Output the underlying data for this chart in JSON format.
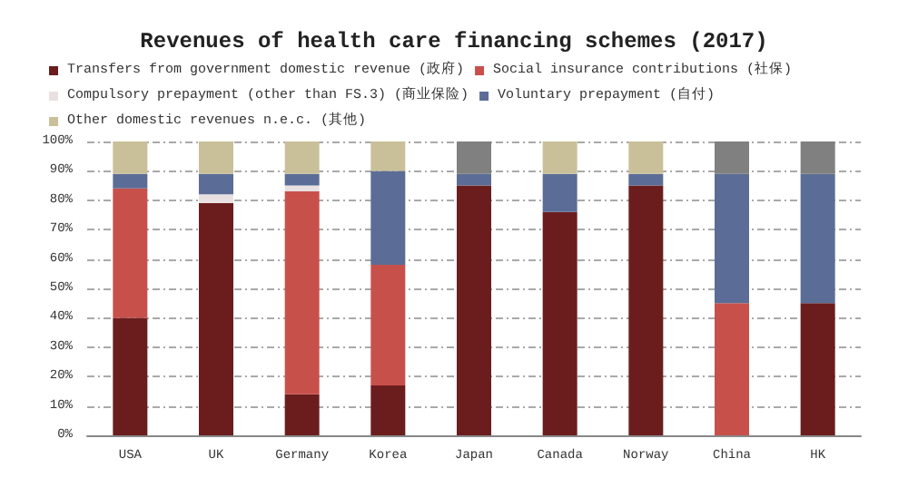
{
  "chart_data": {
    "type": "bar",
    "stacked": true,
    "title": "Revenues of health care financing schemes (2017)",
    "categories": [
      "USA",
      "UK",
      "Germany",
      "Korea",
      "Japan",
      "Canada",
      "Norway",
      "China",
      "HK"
    ],
    "series": [
      {
        "name": "Transfers from government domestic revenue (政府)",
        "color": "#6b1d1d",
        "values": [
          40,
          79,
          14,
          17,
          85,
          76,
          85,
          0,
          45
        ]
      },
      {
        "name": "Social insurance contributions (社保)",
        "color": "#c8504b",
        "values": [
          44,
          0,
          69,
          41,
          0,
          0,
          0,
          45,
          0
        ]
      },
      {
        "name": "Compulsory prepayment (other than FS.3) (商业保险)",
        "color": "#e9e1e1",
        "values": [
          0,
          3,
          2,
          0,
          0,
          0,
          0,
          0,
          0
        ]
      },
      {
        "name": "Voluntary prepayment (自付)",
        "color": "#5b6d96",
        "values": [
          5,
          7,
          4,
          32,
          4,
          13,
          4,
          44,
          44
        ]
      },
      {
        "name": "Other domestic revenues n.e.c. (其他)",
        "color": "#c9c09a",
        "colors": [
          "#c9c09a",
          "#c9c09a",
          "#c9c09a",
          "#c9c09a",
          "#808080",
          "#c9c09a",
          "#c9c09a",
          "#808080",
          "#808080"
        ],
        "values": [
          11,
          11,
          11,
          10,
          11,
          11,
          11,
          11,
          11
        ]
      }
    ],
    "ylim": [
      0,
      100
    ],
    "yticks": [
      {
        "value": 0,
        "label": "0%"
      },
      {
        "value": 10,
        "label": "10%"
      },
      {
        "value": 20,
        "label": "20%"
      },
      {
        "value": 30,
        "label": "30%"
      },
      {
        "value": 40,
        "label": "40%"
      },
      {
        "value": 50,
        "label": "50%"
      },
      {
        "value": 60,
        "label": "60%"
      },
      {
        "value": 70,
        "label": "70%"
      },
      {
        "value": 80,
        "label": "80%"
      },
      {
        "value": 90,
        "label": "90%"
      },
      {
        "value": 100,
        "label": "100%"
      }
    ],
    "grid": "y",
    "legend": "top"
  }
}
